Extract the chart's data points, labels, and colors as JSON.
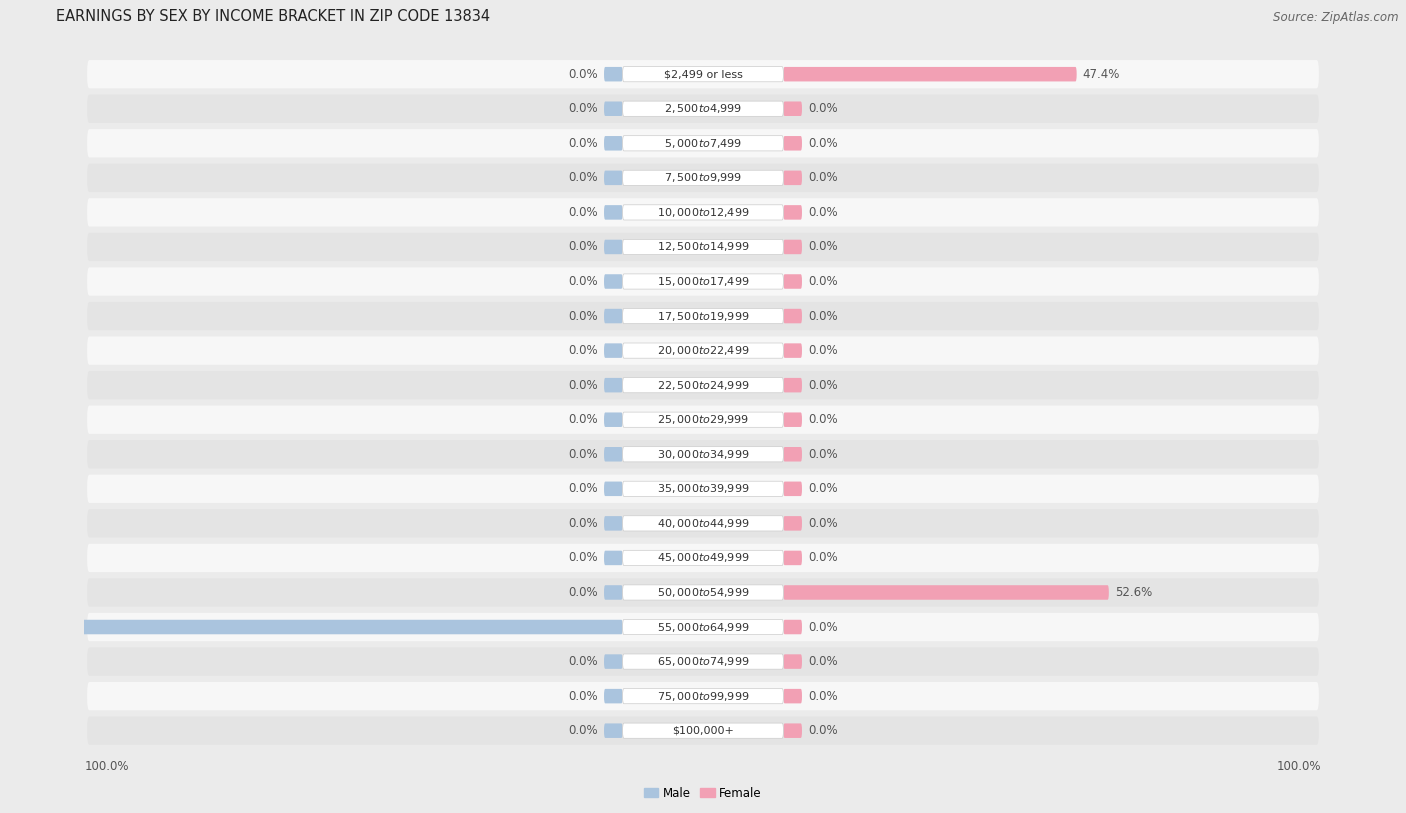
{
  "title": "EARNINGS BY SEX BY INCOME BRACKET IN ZIP CODE 13834",
  "source": "Source: ZipAtlas.com",
  "categories": [
    "$2,499 or less",
    "$2,500 to $4,999",
    "$5,000 to $7,499",
    "$7,500 to $9,999",
    "$10,000 to $12,499",
    "$12,500 to $14,999",
    "$15,000 to $17,499",
    "$17,500 to $19,999",
    "$20,000 to $22,499",
    "$22,500 to $24,999",
    "$25,000 to $29,999",
    "$30,000 to $34,999",
    "$35,000 to $39,999",
    "$40,000 to $44,999",
    "$45,000 to $49,999",
    "$50,000 to $54,999",
    "$55,000 to $64,999",
    "$65,000 to $74,999",
    "$75,000 to $99,999",
    "$100,000+"
  ],
  "male_values": [
    0.0,
    0.0,
    0.0,
    0.0,
    0.0,
    0.0,
    0.0,
    0.0,
    0.0,
    0.0,
    0.0,
    0.0,
    0.0,
    0.0,
    0.0,
    0.0,
    100.0,
    0.0,
    0.0,
    0.0
  ],
  "female_values": [
    47.4,
    0.0,
    0.0,
    0.0,
    0.0,
    0.0,
    0.0,
    0.0,
    0.0,
    0.0,
    0.0,
    0.0,
    0.0,
    0.0,
    0.0,
    52.6,
    0.0,
    0.0,
    0.0,
    0.0
  ],
  "male_color": "#aac4de",
  "female_color": "#f2a0b4",
  "male_label": "Male",
  "female_label": "Female",
  "bg_color": "#ebebeb",
  "row_color_even": "#f7f7f7",
  "row_color_odd": "#e4e4e4",
  "label_color": "#555555",
  "cat_bg_color": "#ffffff",
  "xlim": 100.0,
  "min_bar": 3.0,
  "title_fontsize": 10.5,
  "source_fontsize": 8.5,
  "tick_fontsize": 8.5,
  "val_fontsize": 8.5,
  "cat_fontsize": 8.0
}
